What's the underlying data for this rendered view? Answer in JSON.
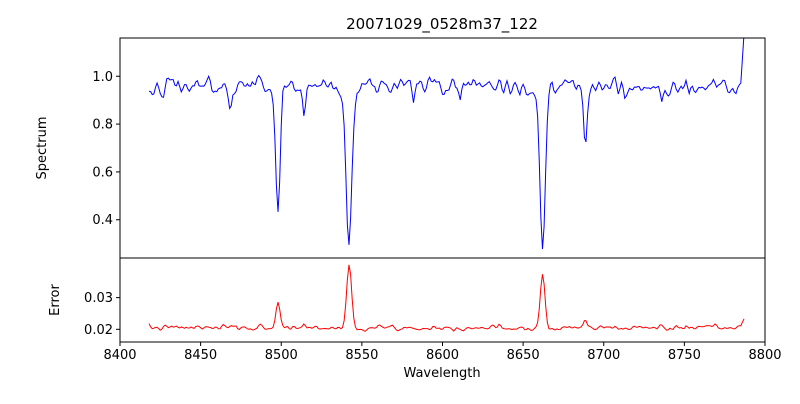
{
  "figure": {
    "background": "#ffffff"
  },
  "chart_data": {
    "type": "line",
    "title": "20071029_0528m37_122",
    "xlabel": "Wavelength",
    "grid": false,
    "legend": "none",
    "xlim": [
      8400,
      8800
    ],
    "x_ticks": [
      8400,
      8450,
      8500,
      8550,
      8600,
      8650,
      8700,
      8750,
      8800
    ],
    "x_tick_labels": [
      "8400",
      "8450",
      "8500",
      "8550",
      "8600",
      "8650",
      "8700",
      "8750",
      "8800"
    ],
    "subplots": [
      {
        "name": "spectrum",
        "ylabel": "Spectrum",
        "ylim": [
          0.24,
          1.16
        ],
        "y_ticks": [
          0.4,
          0.6,
          0.8,
          1.0
        ],
        "y_tick_labels": [
          "0.4",
          "0.6",
          "0.8",
          "1.0"
        ],
        "line_color": "#0000ff",
        "x_start": 8418,
        "x_end": 8787,
        "x_step": 1,
        "base": 0.96,
        "noise_sigma": 0.018,
        "seed": 42,
        "features_note": "normalized stellar spectrum, continuum ~0.96; Ca II triplet absorption lines at 8498/8542/8662; amp negative = absorption depth",
        "features": [
          {
            "center": 8498.0,
            "amp": -0.52,
            "sigma": 1.4
          },
          {
            "center": 8542.1,
            "amp": -0.66,
            "sigma": 1.9
          },
          {
            "center": 8662.1,
            "amp": -0.64,
            "sigma": 1.7
          },
          {
            "center": 8688.6,
            "amp": -0.27,
            "sigma": 1.1
          },
          {
            "center": 8468.5,
            "amp": -0.1,
            "sigma": 0.9
          },
          {
            "center": 8514.2,
            "amp": -0.15,
            "sigma": 0.9
          },
          {
            "center": 8582.0,
            "amp": -0.07,
            "sigma": 0.8
          },
          {
            "center": 8611.0,
            "amp": -0.06,
            "sigma": 0.8
          },
          {
            "center": 8648.0,
            "amp": -0.06,
            "sigma": 0.8
          },
          {
            "center": 8713.0,
            "amp": -0.06,
            "sigma": 0.8
          },
          {
            "center": 8736.0,
            "amp": -0.05,
            "sigma": 0.8
          },
          {
            "center": 8787.0,
            "amp": 0.17,
            "sigma": 0.9
          }
        ]
      },
      {
        "name": "error",
        "ylabel": "Error",
        "ylim": [
          0.016,
          0.0425
        ],
        "y_ticks": [
          0.02,
          0.03
        ],
        "y_tick_labels": [
          "0.02",
          "0.03"
        ],
        "line_color": "#ff0000",
        "x_start": 8418,
        "x_end": 8787,
        "x_step": 1,
        "base": 0.0205,
        "noise_sigma": 0.0004,
        "seed": 7,
        "features_note": "error ~0.0205 baseline with peaks at the absorption-line wavelengths",
        "features": [
          {
            "center": 8498.0,
            "amp": 0.008,
            "sigma": 1.3
          },
          {
            "center": 8542.1,
            "amp": 0.0195,
            "sigma": 1.5
          },
          {
            "center": 8662.1,
            "amp": 0.017,
            "sigma": 1.4
          },
          {
            "center": 8688.6,
            "amp": 0.0025,
            "sigma": 1.0
          },
          {
            "center": 8514.2,
            "amp": 0.0012,
            "sigma": 0.9
          },
          {
            "center": 8787.0,
            "amp": 0.003,
            "sigma": 0.9
          }
        ]
      }
    ]
  }
}
